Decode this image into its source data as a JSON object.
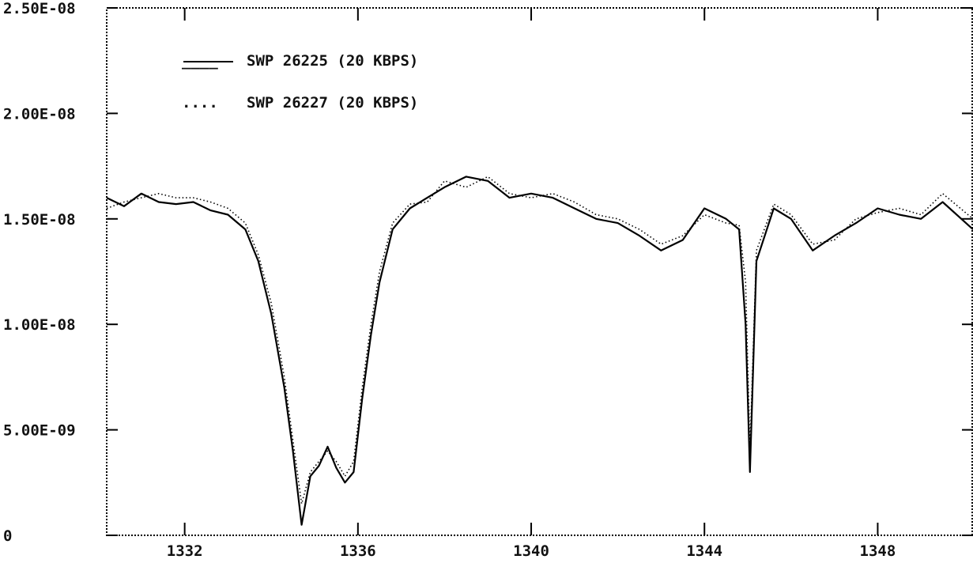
{
  "chart_data": {
    "type": "line",
    "title": "",
    "xlabel": "",
    "ylabel": "",
    "xlim": [
      1330.2,
      1350.2
    ],
    "ylim": [
      0,
      2.5e-08
    ],
    "x_ticks": [
      1332,
      1336,
      1340,
      1344,
      1348
    ],
    "x_tick_labels": [
      "1332",
      "1336",
      "1340",
      "1344",
      "1348"
    ],
    "y_ticks": [
      0,
      5e-09,
      1e-08,
      1.5e-08,
      2e-08,
      2.5e-08
    ],
    "y_tick_labels": [
      "0",
      "5.00E-09",
      "1.00E-08",
      "1.50E-08",
      "2.00E-08",
      "2.50E-08"
    ],
    "grid": false,
    "legend_position": "top-left",
    "colors": {
      "line": "#000000",
      "background": "#ffffff"
    },
    "series": [
      {
        "name": "SWP 26225 (20 KBPS)",
        "style": "solid",
        "legend_marker": "____",
        "x": [
          1330.2,
          1330.6,
          1331.0,
          1331.4,
          1331.8,
          1332.2,
          1332.6,
          1333.0,
          1333.4,
          1333.7,
          1334.0,
          1334.3,
          1334.5,
          1334.7,
          1334.9,
          1335.1,
          1335.3,
          1335.5,
          1335.7,
          1335.9,
          1336.1,
          1336.3,
          1336.5,
          1336.8,
          1337.2,
          1337.6,
          1338.0,
          1338.5,
          1339.0,
          1339.5,
          1340.0,
          1340.5,
          1341.0,
          1341.5,
          1342.0,
          1342.5,
          1343.0,
          1343.5,
          1344.0,
          1344.5,
          1344.8,
          1344.95,
          1345.05,
          1345.2,
          1345.6,
          1346.0,
          1346.5,
          1347.0,
          1347.5,
          1348.0,
          1348.5,
          1349.0,
          1349.5,
          1350.2
        ],
        "values": [
          1.6e-08,
          1.56e-08,
          1.62e-08,
          1.58e-08,
          1.57e-08,
          1.58e-08,
          1.54e-08,
          1.52e-08,
          1.45e-08,
          1.3e-08,
          1.05e-08,
          7e-09,
          4e-09,
          5e-10,
          2.8e-09,
          3.3e-09,
          4.2e-09,
          3.2e-09,
          2.5e-09,
          3e-09,
          6.5e-09,
          9.5e-09,
          1.2e-08,
          1.45e-08,
          1.55e-08,
          1.6e-08,
          1.65e-08,
          1.7e-08,
          1.68e-08,
          1.6e-08,
          1.62e-08,
          1.6e-08,
          1.55e-08,
          1.5e-08,
          1.48e-08,
          1.42e-08,
          1.35e-08,
          1.4e-08,
          1.55e-08,
          1.5e-08,
          1.45e-08,
          1e-08,
          3e-09,
          1.3e-08,
          1.55e-08,
          1.5e-08,
          1.35e-08,
          1.42e-08,
          1.48e-08,
          1.55e-08,
          1.52e-08,
          1.5e-08,
          1.58e-08,
          1.45e-08
        ]
      },
      {
        "name": "SWP 26227 (20 KBPS)",
        "style": "dotted",
        "legend_marker": "....",
        "x": [
          1330.2,
          1330.6,
          1331.0,
          1331.4,
          1331.8,
          1332.2,
          1332.6,
          1333.0,
          1333.4,
          1333.7,
          1334.0,
          1334.3,
          1334.5,
          1334.7,
          1334.9,
          1335.1,
          1335.3,
          1335.5,
          1335.7,
          1335.9,
          1336.1,
          1336.3,
          1336.5,
          1336.8,
          1337.2,
          1337.6,
          1338.0,
          1338.5,
          1339.0,
          1339.5,
          1340.0,
          1340.5,
          1341.0,
          1341.5,
          1342.0,
          1342.5,
          1343.0,
          1343.5,
          1344.0,
          1344.5,
          1344.8,
          1344.95,
          1345.05,
          1345.2,
          1345.6,
          1346.0,
          1346.5,
          1347.0,
          1347.5,
          1348.0,
          1348.5,
          1349.0,
          1349.5,
          1350.2
        ],
        "values": [
          1.55e-08,
          1.58e-08,
          1.6e-08,
          1.62e-08,
          1.6e-08,
          1.6e-08,
          1.58e-08,
          1.55e-08,
          1.48e-08,
          1.33e-08,
          1.1e-08,
          7.5e-09,
          4.5e-09,
          1.5e-09,
          3e-09,
          3.5e-09,
          4e-09,
          3.5e-09,
          2.8e-09,
          3.5e-09,
          7e-09,
          1e-08,
          1.25e-08,
          1.48e-08,
          1.57e-08,
          1.58e-08,
          1.68e-08,
          1.65e-08,
          1.7e-08,
          1.62e-08,
          1.6e-08,
          1.62e-08,
          1.58e-08,
          1.52e-08,
          1.5e-08,
          1.45e-08,
          1.38e-08,
          1.42e-08,
          1.52e-08,
          1.48e-08,
          1.47e-08,
          1.2e-08,
          4e-09,
          1.35e-08,
          1.57e-08,
          1.52e-08,
          1.38e-08,
          1.4e-08,
          1.5e-08,
          1.53e-08,
          1.55e-08,
          1.52e-08,
          1.62e-08,
          1.5e-08
        ]
      }
    ]
  }
}
